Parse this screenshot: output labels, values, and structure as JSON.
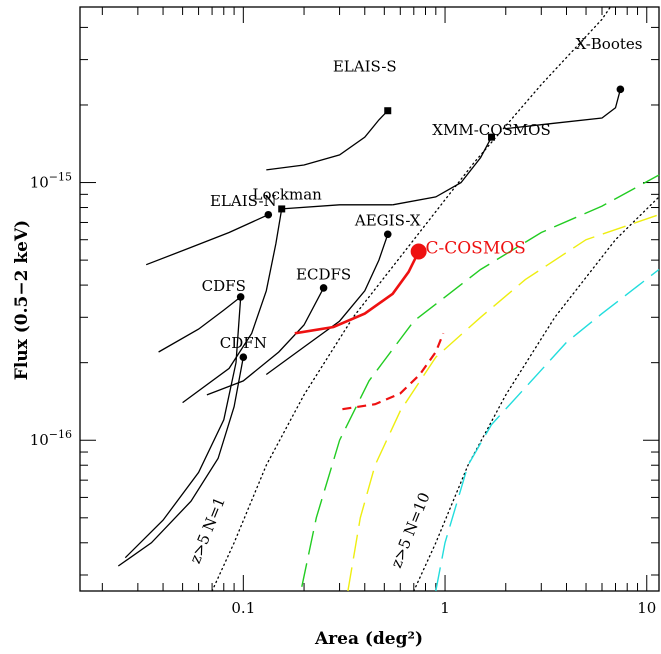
{
  "chart_data": {
    "type": "line",
    "xlabel": "Area (deg²)",
    "ylabel": "Flux (0.5−2 keV)",
    "xscale": "log",
    "yscale": "log",
    "xlim": [
      0.0155,
      11.5
    ],
    "ylim": [
      2.6e-17,
      4.8e-15
    ],
    "x_ticks": [
      {
        "value": 0.1,
        "label": "0.1"
      },
      {
        "value": 1,
        "label": "1"
      },
      {
        "value": 10,
        "label": "10"
      }
    ],
    "y_ticks": [
      {
        "value": 1e-16,
        "label": "10",
        "exp": "−16"
      },
      {
        "value": 1e-15,
        "label": "10",
        "exp": "−15"
      }
    ],
    "grid": false,
    "surveys": [
      {
        "name": "ELAIS-S",
        "marker": "square",
        "marker_at": [
          0.52,
          1.9e-15
        ],
        "label_x": 0.4,
        "label_y": 2.7e-15,
        "curve": [
          [
            0.13,
            1.12e-15
          ],
          [
            0.2,
            1.17e-15
          ],
          [
            0.3,
            1.28e-15
          ],
          [
            0.4,
            1.5e-15
          ],
          [
            0.47,
            1.75e-15
          ],
          [
            0.52,
            1.9e-15
          ]
        ]
      },
      {
        "name": "X-Bootes",
        "marker": "circle",
        "marker_at": [
          7.4,
          2.3e-15
        ],
        "label_x": 6.5,
        "label_y": 3.3e-15,
        "curve": [
          [
            2.0,
            1.62e-15
          ],
          [
            3.5,
            1.7e-15
          ],
          [
            6.0,
            1.78e-15
          ],
          [
            7.0,
            1.95e-15
          ],
          [
            7.4,
            2.3e-15
          ]
        ]
      },
      {
        "name": "XMM-COSMOS",
        "marker": "square",
        "marker_at": [
          1.7,
          1.5e-15
        ],
        "label_x": 1.7,
        "label_y": 1.53e-15,
        "curve": [
          [
            0.55,
            8.2e-16
          ],
          [
            0.9,
            8.8e-16
          ],
          [
            1.2,
            1e-15
          ],
          [
            1.5,
            1.25e-15
          ],
          [
            1.7,
            1.5e-15
          ]
        ]
      },
      {
        "name": "Lockman",
        "marker": "square",
        "marker_at": [
          0.155,
          7.9e-16
        ],
        "label_x": 0.165,
        "label_y": 8.6e-16,
        "curve": [
          [
            0.05,
            1.4e-16
          ],
          [
            0.085,
            1.9e-16
          ],
          [
            0.11,
            2.6e-16
          ],
          [
            0.13,
            3.8e-16
          ],
          [
            0.145,
            5.8e-16
          ],
          [
            0.155,
            7.9e-16
          ]
        ],
        "tail": [
          [
            0.155,
            7.9e-16
          ],
          [
            0.3,
            8.2e-16
          ],
          [
            0.55,
            8.2e-16
          ]
        ]
      },
      {
        "name": "ELAIS-N",
        "marker": "circle",
        "marker_at": [
          0.133,
          7.5e-16
        ],
        "label_x": 0.1,
        "label_y": 8.1e-16,
        "curve": [
          [
            0.033,
            4.8e-16
          ],
          [
            0.055,
            5.6e-16
          ],
          [
            0.085,
            6.4e-16
          ],
          [
            0.133,
            7.5e-16
          ]
        ]
      },
      {
        "name": "AEGIS-X",
        "marker": "circle",
        "marker_at": [
          0.52,
          6.3e-16
        ],
        "label_x": 0.52,
        "label_y": 6.8e-16,
        "curve": [
          [
            0.13,
            1.8e-16
          ],
          [
            0.2,
            2.3e-16
          ],
          [
            0.3,
            2.9e-16
          ],
          [
            0.4,
            3.8e-16
          ],
          [
            0.47,
            5e-16
          ],
          [
            0.52,
            6.3e-16
          ]
        ]
      },
      {
        "name": "CDFS",
        "marker": "circle",
        "marker_at": [
          0.097,
          3.6e-16
        ],
        "label_x": 0.08,
        "label_y": 3.8e-16,
        "curve": [
          [
            0.038,
            2.2e-16
          ],
          [
            0.06,
            2.7e-16
          ],
          [
            0.08,
            3.2e-16
          ],
          [
            0.097,
            3.6e-16
          ]
        ]
      },
      {
        "name": "ECDFS",
        "marker": "circle",
        "marker_at": [
          0.25,
          3.9e-16
        ],
        "label_x": 0.25,
        "label_y": 4.2e-16,
        "curve": [
          [
            0.066,
            1.5e-16
          ],
          [
            0.1,
            1.7e-16
          ],
          [
            0.15,
            2.2e-16
          ],
          [
            0.2,
            2.8e-16
          ],
          [
            0.25,
            3.9e-16
          ]
        ]
      },
      {
        "name": "CDFN",
        "marker": "circle",
        "marker_at": [
          0.1,
          2.1e-16
        ],
        "label_x": 0.1,
        "label_y": 2.28e-16,
        "curve": [
          [
            0.024,
            3.25e-17
          ],
          [
            0.035,
            4e-17
          ],
          [
            0.055,
            5.8e-17
          ],
          [
            0.075,
            8.5e-17
          ],
          [
            0.09,
            1.35e-16
          ],
          [
            0.1,
            2.1e-16
          ]
        ]
      },
      {
        "name": "",
        "marker": "none",
        "note": "unlabelled line connecting lower-left to CDFS",
        "curve": [
          [
            0.026,
            3.5e-17
          ],
          [
            0.04,
            4.9e-17
          ],
          [
            0.06,
            7.5e-17
          ],
          [
            0.08,
            1.2e-16
          ],
          [
            0.092,
            2e-16
          ],
          [
            0.097,
            3.6e-16
          ]
        ]
      }
    ],
    "ccosmos": {
      "name": "C-COSMOS",
      "color": "#ee1111",
      "label_x": 0.8,
      "label_y": 5.3e-16,
      "marker_at": [
        0.74,
        5.4e-16
      ],
      "solid": [
        [
          0.18,
          2.6e-16
        ],
        [
          0.28,
          2.75e-16
        ],
        [
          0.4,
          3.1e-16
        ],
        [
          0.55,
          3.7e-16
        ],
        [
          0.66,
          4.5e-16
        ],
        [
          0.74,
          5.4e-16
        ]
      ],
      "dashed": [
        [
          0.31,
          1.32e-16
        ],
        [
          0.45,
          1.38e-16
        ],
        [
          0.6,
          1.52e-16
        ],
        [
          0.75,
          1.8e-16
        ],
        [
          0.9,
          2.2e-16
        ],
        [
          0.98,
          2.6e-16
        ]
      ]
    },
    "dashed_curves": [
      {
        "color": "#22cc22",
        "points": [
          [
            0.195,
            2.7e-17
          ],
          [
            0.23,
            5e-17
          ],
          [
            0.3,
            1e-16
          ],
          [
            0.42,
            1.7e-16
          ],
          [
            0.7,
            2.9e-16
          ],
          [
            1.5,
            4.6e-16
          ],
          [
            3,
            6.4e-16
          ],
          [
            6,
            8.1e-16
          ],
          [
            11.5,
            1.07e-15
          ]
        ]
      },
      {
        "color": "#eeee11",
        "points": [
          [
            0.33,
            2.6e-17
          ],
          [
            0.38,
            5e-17
          ],
          [
            0.45,
            8e-17
          ],
          [
            0.6,
            1.3e-16
          ],
          [
            0.9,
            2.1e-16
          ],
          [
            1.5,
            3e-16
          ],
          [
            2.5,
            4.2e-16
          ],
          [
            5,
            6e-16
          ],
          [
            11.5,
            7.5e-16
          ]
        ]
      },
      {
        "color": "#22dddd",
        "points": [
          [
            0.9,
            2.6e-17
          ],
          [
            1.0,
            4e-17
          ],
          [
            1.3,
            8e-17
          ],
          [
            1.7,
            1.15e-16
          ],
          [
            2.5,
            1.6e-16
          ],
          [
            4,
            2.4e-16
          ],
          [
            6,
            3.1e-16
          ],
          [
            11.5,
            4.6e-16
          ]
        ]
      }
    ],
    "dotted_curves": [
      {
        "label": "z>5 N=1",
        "label_x": 0.07,
        "label_y": 4.4e-17,
        "points": [
          [
            0.07,
            2.6e-17
          ],
          [
            0.09,
            4e-17
          ],
          [
            0.13,
            8e-17
          ],
          [
            0.2,
            1.5e-16
          ],
          [
            0.35,
            3e-16
          ],
          [
            0.7,
            6e-16
          ],
          [
            1.4,
            1.2e-15
          ],
          [
            3,
            2.4e-15
          ],
          [
            6,
            4.3e-15
          ],
          [
            6.6,
            4.8e-15
          ]
        ]
      },
      {
        "label": "z>5 N=10",
        "label_x": 0.71,
        "label_y": 4.4e-17,
        "points": [
          [
            0.7,
            2.6e-17
          ],
          [
            0.9,
            4e-17
          ],
          [
            1.3,
            8e-17
          ],
          [
            2,
            1.5e-16
          ],
          [
            3.5,
            3e-16
          ],
          [
            7,
            6e-16
          ],
          [
            11.5,
            8.8e-16
          ]
        ]
      }
    ]
  }
}
